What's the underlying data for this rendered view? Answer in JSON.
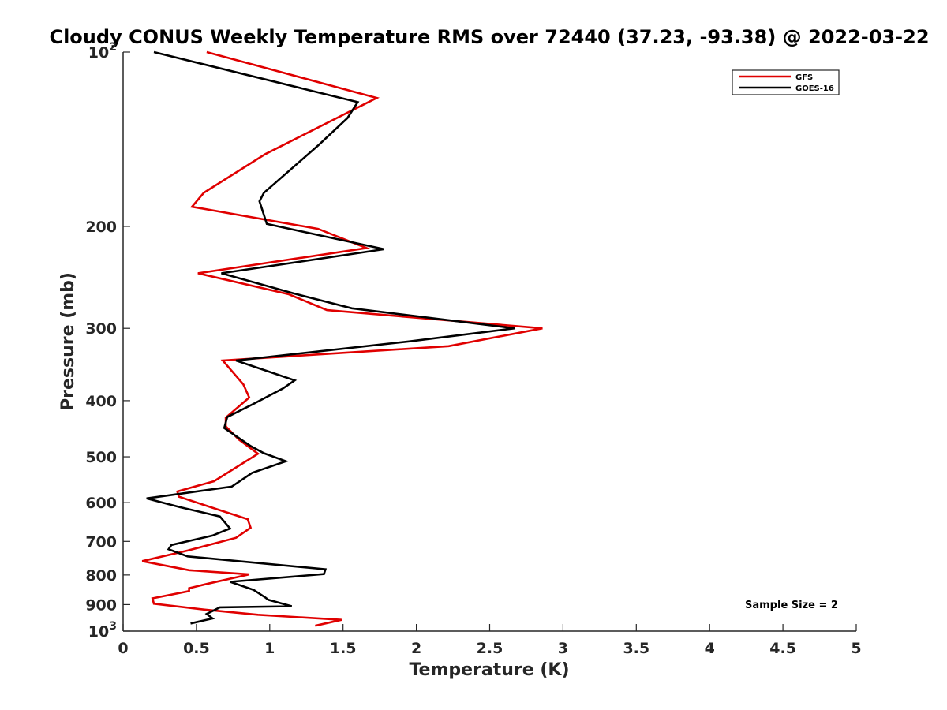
{
  "chart_data": {
    "type": "line",
    "title": "Cloudy CONUS Weekly Temperature RMS over 72440 (37.23, -93.38) @ 2022-03-22",
    "xlabel": "Temperature (K)",
    "ylabel": "Pressure (mb)",
    "xlim": [
      0,
      5
    ],
    "ylim": [
      100,
      1000
    ],
    "y_scale": "log",
    "y_reversed": true,
    "x_ticks": [
      "0",
      "0.5",
      "1",
      "1.5",
      "2",
      "2.5",
      "3",
      "3.5",
      "4",
      "4.5",
      "5"
    ],
    "y_ticks": [
      {
        "value": 100,
        "base": "10",
        "exp": "2"
      },
      {
        "value": 200,
        "label": "200"
      },
      {
        "value": 300,
        "label": "300"
      },
      {
        "value": 400,
        "label": "400"
      },
      {
        "value": 500,
        "label": "500"
      },
      {
        "value": 600,
        "label": "600"
      },
      {
        "value": 700,
        "label": "700"
      },
      {
        "value": 800,
        "label": "800"
      },
      {
        "value": 900,
        "label": "900"
      },
      {
        "value": 1000,
        "base": "10",
        "exp": "3"
      }
    ],
    "legend": {
      "position": "top-right"
    },
    "grid": false,
    "annotation": "Sample Size = 2",
    "series": [
      {
        "name": "GFS",
        "color": "#e00000",
        "points": [
          [
            0.57,
            100
          ],
          [
            1.73,
            120
          ],
          [
            0.97,
            150
          ],
          [
            0.55,
            175
          ],
          [
            0.47,
            185
          ],
          [
            1.33,
            202
          ],
          [
            1.66,
            218
          ],
          [
            0.51,
            241
          ],
          [
            1.13,
            262
          ],
          [
            1.39,
            279
          ],
          [
            2.86,
            300
          ],
          [
            2.22,
            322
          ],
          [
            0.68,
            341
          ],
          [
            0.82,
            375
          ],
          [
            0.86,
            395
          ],
          [
            0.7,
            428
          ],
          [
            0.7,
            443
          ],
          [
            0.79,
            467
          ],
          [
            0.92,
            494
          ],
          [
            0.62,
            551
          ],
          [
            0.37,
            574
          ],
          [
            0.38,
            586
          ],
          [
            0.65,
            617
          ],
          [
            0.85,
            641
          ],
          [
            0.87,
            663
          ],
          [
            0.77,
            690
          ],
          [
            0.44,
            726
          ],
          [
            0.13,
            757
          ],
          [
            0.45,
            785
          ],
          [
            0.86,
            798
          ],
          [
            0.58,
            828
          ],
          [
            0.45,
            843
          ],
          [
            0.45,
            853
          ],
          [
            0.2,
            878
          ],
          [
            0.21,
            897
          ],
          [
            0.55,
            918
          ],
          [
            0.92,
            937
          ],
          [
            1.49,
            956
          ],
          [
            1.31,
            979
          ]
        ]
      },
      {
        "name": "GOES-16",
        "color": "#000000",
        "points": [
          [
            0.21,
            100
          ],
          [
            1.6,
            122
          ],
          [
            1.53,
            130
          ],
          [
            1.33,
            145
          ],
          [
            0.96,
            175
          ],
          [
            0.93,
            181
          ],
          [
            0.98,
            198
          ],
          [
            1.78,
            219
          ],
          [
            0.67,
            241
          ],
          [
            1.16,
            261
          ],
          [
            1.56,
            277
          ],
          [
            2.67,
            300
          ],
          [
            1.95,
            316
          ],
          [
            0.77,
            341
          ],
          [
            1.17,
            369
          ],
          [
            1.09,
            381
          ],
          [
            0.89,
            405
          ],
          [
            0.71,
            427
          ],
          [
            0.69,
            446
          ],
          [
            0.87,
            479
          ],
          [
            0.96,
            493
          ],
          [
            1.11,
            509
          ],
          [
            0.88,
            533
          ],
          [
            0.74,
            563
          ],
          [
            0.16,
            590
          ],
          [
            0.39,
            611
          ],
          [
            0.66,
            634
          ],
          [
            0.73,
            665
          ],
          [
            0.69,
            671
          ],
          [
            0.61,
            684
          ],
          [
            0.33,
            710
          ],
          [
            0.31,
            722
          ],
          [
            0.44,
            743
          ],
          [
            1.38,
            782
          ],
          [
            1.37,
            797
          ],
          [
            0.73,
            822
          ],
          [
            0.89,
            849
          ],
          [
            0.97,
            875
          ],
          [
            0.99,
            883
          ],
          [
            1.15,
            906
          ],
          [
            0.66,
            910
          ],
          [
            0.57,
            934
          ],
          [
            0.61,
            951
          ],
          [
            0.46,
            970
          ]
        ]
      }
    ]
  }
}
